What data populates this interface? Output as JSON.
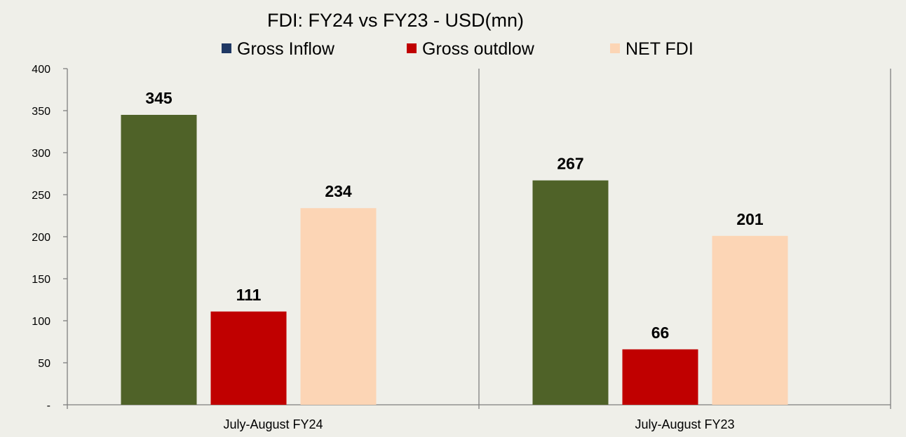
{
  "chart_data": {
    "type": "bar",
    "title": "FDI: FY24 vs FY23 - USD(mn)",
    "categories": [
      "July-August FY24",
      "July-August FY23"
    ],
    "series": [
      {
        "name": "Gross Inflow",
        "values": [
          345,
          267
        ],
        "color": "#4f6228",
        "legend_color": "#1f3864"
      },
      {
        "name": "Gross outdlow",
        "values": [
          111,
          66
        ],
        "color": "#c00000",
        "legend_color": "#c00000"
      },
      {
        "name": "NET FDI",
        "values": [
          234,
          201
        ],
        "color": "#fcd5b5",
        "legend_color": "#fcd5b5"
      }
    ],
    "y_ticks": [
      "-",
      "50",
      "100",
      "150",
      "200",
      "250",
      "300",
      "350",
      "400"
    ],
    "ylim": [
      0,
      400
    ],
    "xlabel": "",
    "ylabel": "",
    "grid": false,
    "legend_position": "top"
  }
}
